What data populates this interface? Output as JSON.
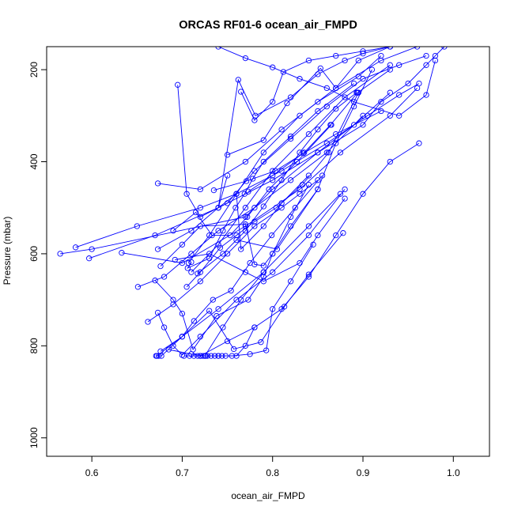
{
  "chart_data": {
    "type": "line",
    "title": "ORCAS RF01-6 ocean_air_FMPD",
    "xlabel": "ocean_air_FMPD",
    "ylabel": "Pressure (mbar)",
    "xlim": [
      0.55,
      1.04
    ],
    "ylim": [
      1040,
      150
    ],
    "y_reversed": true,
    "grid": false,
    "legend": "none",
    "series_color": "#0000ff",
    "x_ticks": [
      0.6,
      0.7,
      0.8,
      0.9,
      1.0
    ],
    "x_tick_labels": [
      "0.6",
      "0.7",
      "0.8",
      "0.9",
      "1.0"
    ],
    "y_ticks": [
      200,
      400,
      600,
      800,
      1000
    ],
    "y_tick_labels": [
      "200",
      "400",
      "600",
      "800",
      "1000"
    ],
    "series": [
      {
        "x": [
          0.565,
          0.6,
          0.77,
          0.8,
          0.85,
          0.9,
          0.92,
          0.95,
          0.97,
          0.98,
          0.99
        ],
        "y": [
          600,
          590,
          520,
          460,
          380,
          320,
          270,
          230,
          190,
          170,
          150
        ]
      },
      {
        "x": [
          0.582,
          0.65,
          0.72,
          0.76,
          0.81,
          0.86,
          0.905,
          0.94,
          0.962
        ],
        "y": [
          586,
          540,
          500,
          470,
          420,
          360,
          300,
          255,
          230
        ]
      },
      {
        "x": [
          0.597,
          0.67,
          0.74,
          0.8,
          0.85,
          0.89,
          0.93
        ],
        "y": [
          610,
          560,
          500,
          440,
          380,
          320,
          250
        ]
      },
      {
        "x": [
          0.633,
          0.7,
          0.77,
          0.83,
          0.875,
          0.93,
          0.96
        ],
        "y": [
          598,
          620,
          540,
          460,
          380,
          300,
          240
        ]
      },
      {
        "x": [
          0.695,
          0.705,
          0.72,
          0.75,
          0.78,
          0.82,
          0.86,
          0.9,
          0.94,
          0.97
        ],
        "y": [
          233,
          470,
          520,
          490,
          420,
          350,
          280,
          220,
          190,
          170
        ]
      },
      {
        "x": [
          0.673,
          0.72,
          0.77,
          0.81,
          0.85,
          0.895,
          0.92
        ],
        "y": [
          447,
          460,
          400,
          330,
          270,
          215,
          170
        ]
      },
      {
        "x": [
          0.707,
          0.73,
          0.76,
          0.79,
          0.83,
          0.87,
          0.92,
          0.96
        ],
        "y": [
          620,
          560,
          470,
          380,
          300,
          240,
          180,
          150
        ]
      },
      {
        "x": [
          0.71,
          0.74,
          0.77,
          0.8,
          0.84,
          0.88,
          0.93
        ],
        "y": [
          640,
          580,
          500,
          420,
          340,
          260,
          190
        ]
      },
      {
        "x": [
          0.75,
          0.74,
          0.762,
          0.781,
          0.82,
          0.85,
          0.88,
          0.9,
          0.93
        ],
        "y": [
          430,
          500,
          222,
          300,
          260,
          210,
          180,
          165,
          150
        ]
      },
      {
        "x": [
          0.765,
          0.78,
          0.8,
          0.812,
          0.84,
          0.87,
          0.9,
          0.93
        ],
        "y": [
          248,
          310,
          270,
          205,
          180,
          170,
          160,
          150
        ]
      },
      {
        "x": [
          0.76,
          0.805,
          0.85,
          0.87,
          0.89,
          0.91
        ],
        "y": [
          570,
          590,
          460,
          360,
          280,
          200
        ]
      },
      {
        "x": [
          0.651,
          0.68,
          0.71,
          0.74,
          0.78,
          0.82,
          0.86,
          0.9
        ],
        "y": [
          672,
          650,
          600,
          550,
          500,
          440,
          380,
          300
        ]
      },
      {
        "x": [
          0.662,
          0.69,
          0.72,
          0.75,
          0.78,
          0.81,
          0.83,
          0.85
        ],
        "y": [
          748,
          710,
          660,
          600,
          540,
          500,
          470,
          440
        ]
      },
      {
        "x": [
          0.673,
          0.68,
          0.69,
          0.7,
          0.72,
          0.76,
          0.8,
          0.84,
          0.88
        ],
        "y": [
          728,
          760,
          800,
          820,
          780,
          700,
          640,
          560,
          460
        ]
      },
      {
        "x": [
          0.671,
          0.674,
          0.677,
          0.7,
          0.74,
          0.79,
          0.84,
          0.875
        ],
        "y": [
          822,
          822,
          822,
          780,
          720,
          640,
          540,
          470
        ]
      },
      {
        "x": [
          0.685,
          0.71,
          0.726,
          0.74,
          0.755,
          0.775,
          0.793,
          0.8,
          0.82,
          0.845
        ],
        "y": [
          808,
          818,
          822,
          822,
          822,
          818,
          810,
          720,
          660,
          580
        ]
      },
      {
        "x": [
          0.702,
          0.708,
          0.713,
          0.717,
          0.72,
          0.723,
          0.725,
          0.745,
          0.765,
          0.79
        ],
        "y": [
          822,
          822,
          822,
          822,
          822,
          822,
          822,
          760,
          700,
          640
        ]
      },
      {
        "x": [
          0.728,
          0.732,
          0.736,
          0.74,
          0.744,
          0.748,
          0.76,
          0.77,
          0.78
        ],
        "y": [
          822,
          822,
          822,
          822,
          822,
          822,
          822,
          800,
          760
        ]
      },
      {
        "x": [
          0.67,
          0.69,
          0.7,
          0.712,
          0.738,
          0.773,
          0.79,
          0.8,
          0.82,
          0.84
        ],
        "y": [
          658,
          700,
          730,
          808,
          735,
          700,
          650,
          600,
          520,
          450
        ]
      },
      {
        "x": [
          0.673,
          0.71,
          0.74,
          0.76,
          0.765,
          0.79,
          0.81,
          0.84
        ],
        "y": [
          590,
          550,
          500,
          470,
          590,
          540,
          490,
          430
        ]
      },
      {
        "x": [
          0.676,
          0.7,
          0.72,
          0.77,
          0.78,
          0.79,
          0.8,
          0.82,
          0.85
        ],
        "y": [
          627,
          580,
          540,
          536,
          623,
          626,
          600,
          540,
          460
        ]
      },
      {
        "x": [
          0.69,
          0.715,
          0.733,
          0.753,
          0.772,
          0.796,
          0.827,
          0.865
        ],
        "y": [
          550,
          510,
          560,
          560,
          520,
          460,
          400,
          320
        ]
      },
      {
        "x": [
          0.705,
          0.72,
          0.742,
          0.76,
          0.78,
          0.804,
          0.833,
          0.862,
          0.895
        ],
        "y": [
          672,
          640,
          587,
          560,
          530,
          500,
          450,
          380,
          250
        ]
      },
      {
        "x": [
          0.672,
          0.7,
          0.73,
          0.757,
          0.787,
          0.813,
          0.84,
          0.878
        ],
        "y": [
          822,
          780,
          724,
          807,
          792,
          715,
          645,
          555
        ]
      },
      {
        "x": [
          0.773,
          0.8,
          0.835,
          0.864,
          0.894,
          0.93
        ],
        "y": [
          465,
          430,
          380,
          320,
          250,
          200
        ]
      },
      {
        "x": [
          0.692,
          0.73,
          0.77,
          0.79,
          0.83,
          0.85,
          0.88
        ],
        "y": [
          613,
          600,
          640,
          660,
          620,
          560,
          480
        ]
      },
      {
        "x": [
          0.75,
          0.79,
          0.816,
          0.853,
          0.87,
          0.895,
          0.93
        ],
        "y": [
          385,
          353,
          273,
          197,
          240,
          180,
          150
        ]
      },
      {
        "x": [
          0.71,
          0.706,
          0.73,
          0.745,
          0.759,
          0.769,
          0.778,
          0.79,
          0.82,
          0.85,
          0.89
        ],
        "y": [
          618,
          631,
          610,
          550,
          500,
          470,
          437,
          400,
          345,
          290,
          230
        ]
      },
      {
        "x": [
          0.735,
          0.771,
          0.803,
          0.834,
          0.87,
          0.92
        ],
        "y": [
          462,
          442,
          420,
          382,
          340,
          290
        ]
      },
      {
        "x": [
          0.717,
          0.745,
          0.77,
          0.79,
          0.81,
          0.83,
          0.85,
          0.87,
          0.893
        ],
        "y": [
          643,
          600,
          550,
          497,
          440,
          380,
          330,
          285,
          250
        ]
      },
      {
        "x": [
          0.676,
          0.7,
          0.713,
          0.734,
          0.754,
          0.775,
          0.799,
          0.825,
          0.855
        ],
        "y": [
          812,
          780,
          746,
          700,
          680,
          620,
          560,
          500,
          430
        ]
      },
      {
        "x": [
          0.72,
          0.75,
          0.78,
          0.81,
          0.84,
          0.87,
          0.9,
          0.93,
          0.962
        ],
        "y": [
          822,
          790,
          760,
          720,
          650,
          560,
          470,
          400,
          360
        ]
      },
      {
        "x": [
          0.74,
          0.77,
          0.8,
          0.83,
          0.86,
          0.89,
          0.94,
          0.97,
          0.98
        ],
        "y": [
          150,
          175,
          195,
          220,
          240,
          270,
          300,
          255,
          180
        ]
      }
    ]
  }
}
